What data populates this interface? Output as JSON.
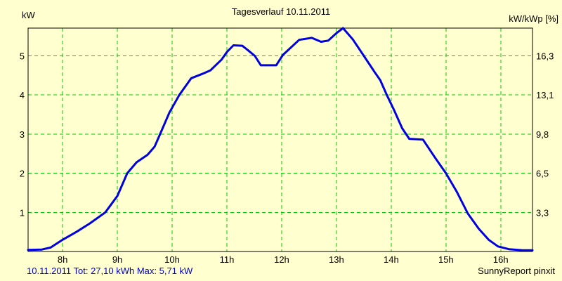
{
  "header": {
    "title": "Tagesverlauf 10.11.2011",
    "left_unit": "kW",
    "right_unit": "kW/kWp [%]"
  },
  "footer": {
    "summary": "10.11.2011 Tot: 27,10 kWh Max: 5,71 kW",
    "branding": "SunnyReport pinxit"
  },
  "colors": {
    "background": "#ffffcf",
    "grid": "#00cc00",
    "line": "#0000e0",
    "frame": "#000000",
    "summary_text": "#0000c8",
    "branding_text": "#000000"
  },
  "chart_data": {
    "type": "line",
    "title": "Tagesverlauf 10.11.2011",
    "xlabel": "",
    "ylabel_left": "kW",
    "ylabel_right": "kW/kWp [%]",
    "grid": true,
    "xlim_hours": [
      7.37,
      16.58
    ],
    "ylim_kw": [
      0,
      5.71
    ],
    "x_ticks": [
      {
        "hour": 8,
        "label": "8h"
      },
      {
        "hour": 9,
        "label": "9h"
      },
      {
        "hour": 10,
        "label": "10h"
      },
      {
        "hour": 11,
        "label": "11h"
      },
      {
        "hour": 12,
        "label": "12h"
      },
      {
        "hour": 13,
        "label": "13h"
      },
      {
        "hour": 14,
        "label": "14h"
      },
      {
        "hour": 15,
        "label": "15h"
      },
      {
        "hour": 16,
        "label": "16h"
      }
    ],
    "y_ticks": [
      {
        "kw": 1,
        "left_label": "1",
        "right_label": "3,3"
      },
      {
        "kw": 2,
        "left_label": "2",
        "right_label": "6,5"
      },
      {
        "kw": 3,
        "left_label": "3",
        "right_label": "9,8"
      },
      {
        "kw": 4,
        "left_label": "4",
        "right_label": "13,1"
      },
      {
        "kw": 5,
        "left_label": "5",
        "right_label": "16,3"
      }
    ],
    "series": [
      {
        "name": "PV power (kW)",
        "points": [
          [
            7.37,
            0.04
          ],
          [
            7.62,
            0.05
          ],
          [
            7.78,
            0.1
          ],
          [
            8.0,
            0.3
          ],
          [
            8.25,
            0.5
          ],
          [
            8.5,
            0.72
          ],
          [
            8.78,
            1.0
          ],
          [
            9.0,
            1.42
          ],
          [
            9.18,
            2.0
          ],
          [
            9.35,
            2.28
          ],
          [
            9.55,
            2.47
          ],
          [
            9.68,
            2.68
          ],
          [
            9.78,
            3.0
          ],
          [
            9.95,
            3.55
          ],
          [
            10.13,
            4.0
          ],
          [
            10.35,
            4.43
          ],
          [
            10.55,
            4.54
          ],
          [
            10.7,
            4.63
          ],
          [
            10.9,
            4.9
          ],
          [
            11.0,
            5.1
          ],
          [
            11.12,
            5.27
          ],
          [
            11.28,
            5.26
          ],
          [
            11.38,
            5.15
          ],
          [
            11.51,
            5.0
          ],
          [
            11.62,
            4.76
          ],
          [
            11.9,
            4.76
          ],
          [
            12.02,
            5.02
          ],
          [
            12.32,
            5.41
          ],
          [
            12.55,
            5.46
          ],
          [
            12.72,
            5.36
          ],
          [
            12.85,
            5.39
          ],
          [
            13.0,
            5.58
          ],
          [
            13.12,
            5.71
          ],
          [
            13.3,
            5.42
          ],
          [
            13.5,
            5.0
          ],
          [
            13.7,
            4.58
          ],
          [
            13.8,
            4.38
          ],
          [
            13.92,
            4.0
          ],
          [
            14.05,
            3.62
          ],
          [
            14.2,
            3.15
          ],
          [
            14.33,
            2.88
          ],
          [
            14.58,
            2.86
          ],
          [
            14.8,
            2.4
          ],
          [
            15.0,
            2.0
          ],
          [
            15.2,
            1.52
          ],
          [
            15.4,
            0.97
          ],
          [
            15.6,
            0.58
          ],
          [
            15.78,
            0.3
          ],
          [
            15.95,
            0.13
          ],
          [
            16.15,
            0.06
          ],
          [
            16.4,
            0.03
          ],
          [
            16.58,
            0.03
          ]
        ]
      }
    ],
    "totals": {
      "date": "10.11.2011",
      "total_kwh": "27,10",
      "max_kw": "5,71"
    }
  }
}
